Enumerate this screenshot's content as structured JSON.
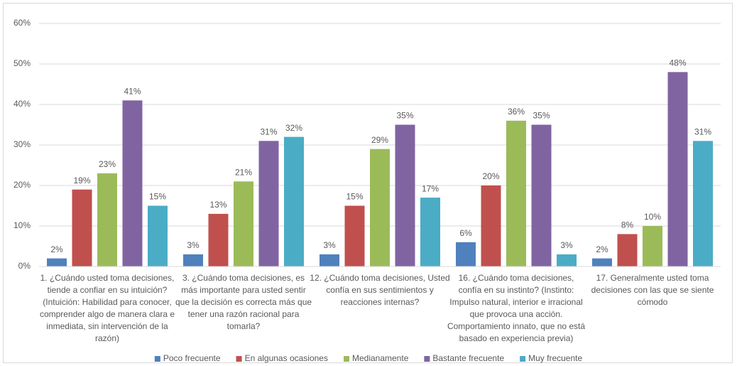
{
  "chart_data": {
    "type": "bar",
    "categories": [
      "1. ¿Cuándo usted toma decisiones, tiende a confiar en su intuición? (Intuición: Habilidad para conocer, comprender algo de manera clara e inmediata, sin intervención de la razón)",
      "3. ¿Cuándo toma decisiones, es más importante para usted sentir que la decisión es correcta más que tener una razón racional para tomarla?",
      "12. ¿Cuándo toma decisiones, Usted confía en sus sentimientos y reacciones internas?",
      "16. ¿Cuándo toma decisiones, confía en su instinto? (Instinto: Impulso natural, interior e irracional que provoca una acción. Comportamiento innato, que no está basado en experiencia previa)",
      "17. Generalmente usted toma decisiones con las que se siente cómodo"
    ],
    "series": [
      {
        "name": "Poco frecuente",
        "color": "#4f81bd",
        "values": [
          2,
          3,
          3,
          6,
          2
        ],
        "value_labels": [
          "2%",
          "3%",
          "3%",
          "6%",
          "2%"
        ]
      },
      {
        "name": "En algunas ocasiones",
        "color": "#c0504d",
        "values": [
          19,
          13,
          15,
          20,
          8
        ],
        "value_labels": [
          "19%",
          "13%",
          "15%",
          "20%",
          "8%"
        ]
      },
      {
        "name": "Medianamente",
        "color": "#9bbb59",
        "values": [
          23,
          21,
          29,
          36,
          10
        ],
        "value_labels": [
          "23%",
          "21%",
          "29%",
          "36%",
          "10%"
        ]
      },
      {
        "name": "Bastante frecuente",
        "color": "#8064a2",
        "values": [
          41,
          31,
          35,
          35,
          48
        ],
        "value_labels": [
          "41%",
          "31%",
          "35%",
          "35%",
          "48%"
        ]
      },
      {
        "name": "Muy frecuente",
        "color": "#4bacc6",
        "values": [
          15,
          32,
          17,
          3,
          31
        ],
        "value_labels": [
          "15%",
          "32%",
          "17%",
          "3%",
          "31%"
        ]
      }
    ],
    "ylim": [
      0,
      60
    ],
    "yticks": [
      {
        "value": 0,
        "label": "0%"
      },
      {
        "value": 10,
        "label": "10%"
      },
      {
        "value": 20,
        "label": "20%"
      },
      {
        "value": 30,
        "label": "30%"
      },
      {
        "value": 40,
        "label": "40%"
      },
      {
        "value": 50,
        "label": "50%"
      },
      {
        "value": 60,
        "label": "60%"
      }
    ],
    "grid": true,
    "legend": "bottom"
  }
}
